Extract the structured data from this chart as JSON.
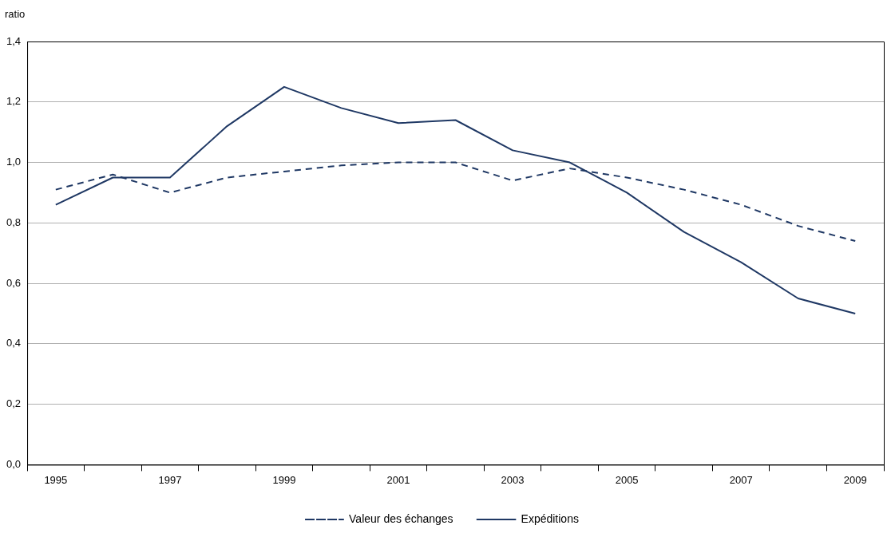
{
  "chart_data": {
    "type": "line",
    "ylabel": "ratio",
    "categories": [
      "1995",
      null,
      "1997",
      null,
      "1999",
      null,
      "2001",
      null,
      "2003",
      null,
      "2005",
      null,
      "2007",
      null,
      "2009"
    ],
    "series": [
      {
        "name": "Valeur des échanges",
        "color": "#1f3864",
        "line_style": "dashed",
        "values": [
          0.91,
          0.96,
          0.9,
          0.95,
          0.97,
          0.99,
          1.0,
          1.0,
          0.94,
          0.98,
          0.95,
          0.91,
          0.86,
          0.79,
          0.74
        ]
      },
      {
        "name": "Expéditions",
        "color": "#1f3864",
        "line_style": "solid",
        "values": [
          0.86,
          0.95,
          0.95,
          1.12,
          1.25,
          1.18,
          1.13,
          1.14,
          1.04,
          1.0,
          0.9,
          0.77,
          0.67,
          0.55,
          0.5
        ]
      }
    ],
    "ylim": [
      0,
      1.4
    ],
    "yticks": [
      {
        "value": 0,
        "label": "0,0"
      },
      {
        "value": 0.2,
        "label": "0,2"
      },
      {
        "value": 0.4,
        "label": "0,4"
      },
      {
        "value": 0.6,
        "label": "0,6"
      },
      {
        "value": 0.8,
        "label": "0,8"
      },
      {
        "value": 1.0,
        "label": "1,0"
      },
      {
        "value": 1.2,
        "label": "1,2"
      },
      {
        "value": 1.4,
        "label": "1,4"
      }
    ],
    "grid": "y",
    "legend": "bottom",
    "marker": "none"
  }
}
